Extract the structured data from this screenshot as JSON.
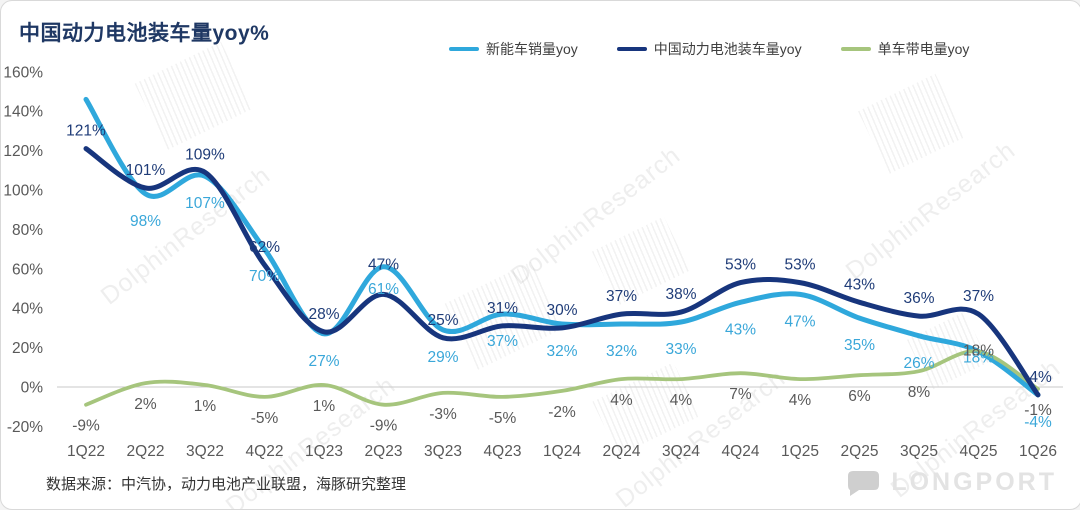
{
  "title": "中国动力电池装车量yoy%",
  "source_note": "数据来源：中汽协，动力电池产业联盟，海豚研究整理",
  "watermark_text": "DolphinResearch",
  "logo_text": "LONGPORT",
  "colors": {
    "title": "#1f3864",
    "axis_text": "#595959",
    "zero_line": "#c9c9c9",
    "background": "#ffffff",
    "border": "#d9d9d9"
  },
  "chart_data": {
    "type": "line",
    "smoothed": true,
    "grid": false,
    "legend_position": "top",
    "ylim": [
      -20,
      160
    ],
    "y_ticks": [
      160,
      140,
      120,
      100,
      80,
      60,
      40,
      20,
      0,
      -20
    ],
    "categories": [
      "1Q22",
      "2Q22",
      "3Q22",
      "4Q22",
      "1Q23",
      "2Q23",
      "3Q23",
      "4Q23",
      "1Q24",
      "2Q24",
      "3Q24",
      "4Q24",
      "1Q25",
      "2Q25",
      "3Q25",
      "4Q25",
      "1Q26"
    ],
    "series": [
      {
        "name": "新能车销量yoy",
        "color": "#2fa8dc",
        "label_color": "#3aa7d9",
        "values": [
          146,
          98,
          107,
          70,
          27,
          61,
          29,
          37,
          32,
          32,
          33,
          43,
          47,
          35,
          26,
          18,
          -4
        ],
        "labels": [
          "",
          "98%",
          "107%",
          "70%",
          "27%",
          "61%",
          "29%",
          "37%",
          "32%",
          "32%",
          "33%",
          "43%",
          "47%",
          "35%",
          "26%",
          "18%",
          "-4%"
        ]
      },
      {
        "name": "中国动力电池装车量yoy",
        "color": "#17357d",
        "label_color": "#1f3c78",
        "values": [
          121,
          101,
          109,
          62,
          28,
          47,
          25,
          31,
          30,
          37,
          38,
          53,
          53,
          43,
          36,
          37,
          -4
        ],
        "labels": [
          "121%",
          "101%",
          "109%",
          "62%",
          "28%",
          "47%",
          "25%",
          "31%",
          "30%",
          "37%",
          "38%",
          "53%",
          "53%",
          "43%",
          "36%",
          "37%",
          "-4%"
        ]
      },
      {
        "name": "单车带电量yoy",
        "color": "#a6c57d",
        "label_color": "#595959",
        "values": [
          -9,
          2,
          1,
          -5,
          1,
          -9,
          -3,
          -5,
          -2,
          4,
          4,
          7,
          4,
          6,
          8,
          18,
          -1
        ],
        "labels": [
          "-9%",
          "2%",
          "1%",
          "-5%",
          "1%",
          "-9%",
          "-3%",
          "-5%",
          "-2%",
          "4%",
          "4%",
          "7%",
          "4%",
          "6%",
          "8%",
          "18%",
          "-1%"
        ]
      }
    ]
  }
}
